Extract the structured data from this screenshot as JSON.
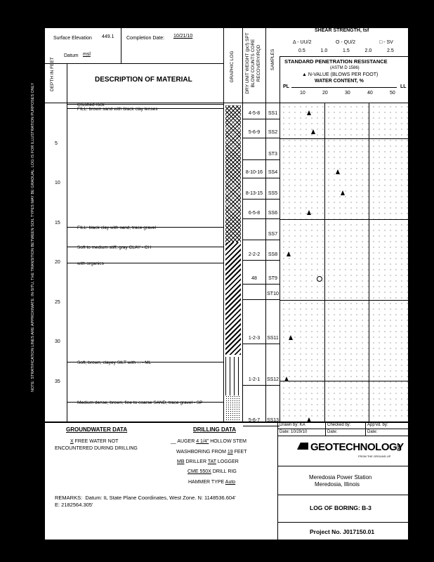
{
  "header": {
    "surface_elevation_label": "Surface Elevation",
    "surface_elevation": "449.1",
    "completion_date_label": "Completion Date:",
    "completion_date": "10/21/10",
    "datum_label": "Datum",
    "datum": "msl",
    "depth_label": "DEPTH IN FEET",
    "description_label": "DESCRIPTION OF MATERIAL",
    "graphic_log_label": "GRAPHIC LOG",
    "blow_label": "DRY UNIT WEIGHT (pcf) SPT BLOW COUNTS CORE RECOVERY/RQD",
    "samples_label": "SAMPLES",
    "shear_title": "SHEAR STRENGTH, tsf",
    "shear_legend": [
      "Δ - UU/2",
      "O - QU/2",
      "□ - SV"
    ],
    "shear_ticks": [
      "0.5",
      "1.0",
      "1.5",
      "2.0",
      "2.5"
    ],
    "spt_title": "STANDARD PENETRATION RESISTANCE",
    "spt_std": "(ASTM D 1586)",
    "nvalue_legend": "▲ N-VALUE (BLOWS PER FOOT)",
    "water_title": "WATER CONTENT, %",
    "pl": "PL",
    "ll": "LL",
    "water_ticks": [
      "10",
      "20",
      "30",
      "40",
      "50"
    ]
  },
  "depth_ticks": [
    "5",
    "10",
    "15",
    "20",
    "25",
    "30",
    "35"
  ],
  "strata": [
    {
      "text": "Crushed rock",
      "depth": 0
    },
    {
      "text": "FILL: brown sand with black clay lenses",
      "depth": 0.5
    },
    {
      "text": "FILL: black clay with sand, trace gravel",
      "depth": 15.5
    },
    {
      "text": "Soft to medium stiff, gray CLAY - CH",
      "depth": 18
    },
    {
      "text": "with organics",
      "depth": 20
    },
    {
      "text": "Soft, brown, clayey SILT with ... - ML",
      "depth": 32.5
    },
    {
      "text": "Medium dense, brown, fine to coarse SAND, trace gravel - SP",
      "depth": 37.5
    }
  ],
  "samples": [
    {
      "id": "SS1",
      "blows": "4-5-8",
      "depth": 1.2,
      "n": 13
    },
    {
      "id": "SS2",
      "blows": "5-6-9",
      "depth": 3.6,
      "n": 15
    },
    {
      "id": "ST3",
      "blows": "",
      "depth": 6.4
    },
    {
      "id": "SS4",
      "blows": "8-10-16",
      "depth": 8.7,
      "n": 26
    },
    {
      "id": "SS5",
      "blows": "8-13-15",
      "depth": 11.3,
      "n": 28
    },
    {
      "id": "SS6",
      "blows": "6-5-8",
      "depth": 13.8,
      "n": 13
    },
    {
      "id": "SS7",
      "blows": "",
      "depth": 16.5
    },
    {
      "id": "SS8",
      "blows": "2-2-2",
      "depth": 19,
      "n": 4
    },
    {
      "id": "ST9",
      "blows": "48",
      "depth": 22,
      "qu": 0.9
    },
    {
      "id": "ST10",
      "blows": "",
      "depth": 24
    },
    {
      "id": "SS11",
      "blows": "1-2-3",
      "depth": 29.6,
      "n": 5
    },
    {
      "id": "SS12",
      "blows": "1-2-1",
      "depth": 34.8,
      "n": 3
    },
    {
      "id": "SS13",
      "blows": "5-6-7",
      "depth": 39.9,
      "n": 13
    }
  ],
  "groundwater": {
    "title": "GROUNDWATER DATA",
    "mark": "X",
    "line1": "FREE WATER NOT",
    "line2": "ENCOUNTERED DURING DRILLING"
  },
  "drilling": {
    "title": "DRILLING DATA",
    "auger": "AUGER",
    "auger_size": "4 1/4\"",
    "auger_type": "HOLLOW STEM",
    "wash_label": "WASHBORING FROM",
    "wash_depth": "19",
    "wash_unit": "FEET",
    "driller": "MB",
    "driller_label": "DRILLER",
    "logger": "TAT",
    "logger_label": "LOGGER",
    "rig": "CME 550X",
    "rig_label": "DRILL RIG",
    "hammer_label": "HAMMER TYPE",
    "hammer": "Auto"
  },
  "remarks": {
    "label": "REMARKS:",
    "text": "Datum: IL State Plane Coordinates, West Zone.  N: 1148536.604'",
    "text2": "E: 2182564.305'"
  },
  "titleblock": {
    "drawn": "Drawn by: KA",
    "checked": "Checked by:",
    "apprvd": "App'vd. by:",
    "date1": "Date: 10/29/10",
    "date2": "Date:",
    "date3": "Date:",
    "logo": "GEOTECHNOLOGY",
    "logo_suffix": "INC",
    "tagline": "FROM THE GROUND UP",
    "project_name": "Meredosia Power Station",
    "location": "Meredosia, Illinois",
    "log_title": "LOG OF BORING:  B-3",
    "project_no": "Project No.  J017150.01"
  },
  "side_note": "NOTE: STRATIFICATION LINES ARE APPROXIMATE. IN-SITU, THE TRANSITION BETWEEN SOIL TYPES MAY BE GRADUAL. LOG IS FOR ILLUSTRATION PURPOSES ONLY"
}
